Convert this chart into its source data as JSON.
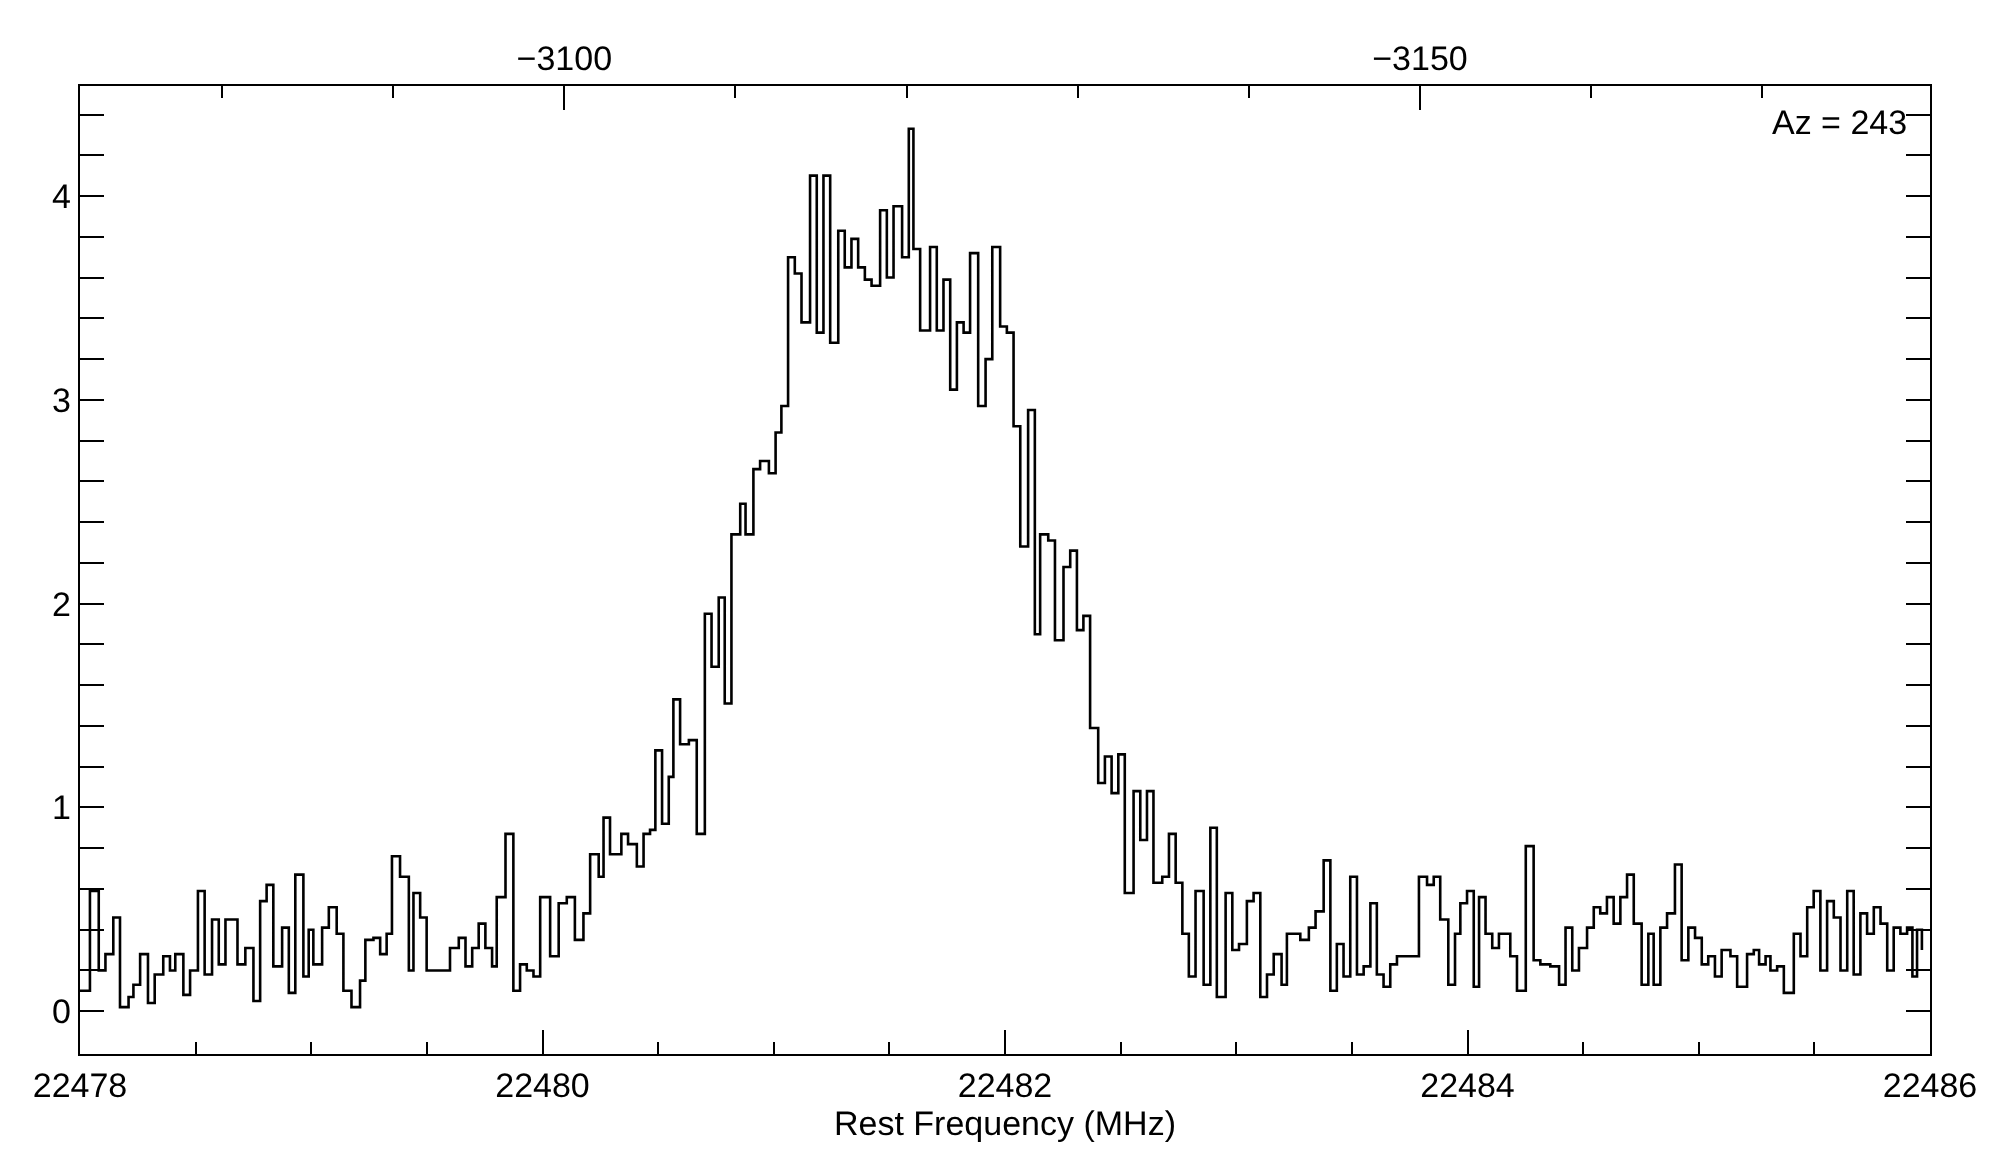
{
  "chart_data": {
    "type": "step",
    "xlabel": "Rest Frequency (MHz)",
    "annotations": [
      "Az = 243"
    ],
    "xlim": [
      22478,
      22486
    ],
    "xticks": [
      22478,
      {
        "value": 22478.5,
        "label": null
      },
      {
        "value": 22479,
        "label": null
      },
      {
        "value": 22479.5,
        "label": null
      },
      22480,
      {
        "value": 22480.5,
        "label": null
      },
      {
        "value": 22481,
        "label": null
      },
      {
        "value": 22481.5,
        "label": null
      },
      22482,
      {
        "value": 22482.5,
        "label": null
      },
      {
        "value": 22483,
        "label": null
      },
      {
        "value": 22483.5,
        "label": null
      },
      22484,
      {
        "value": 22484.5,
        "label": null
      },
      {
        "value": 22485,
        "label": null
      },
      {
        "value": 22485.5,
        "label": null
      },
      22486
    ],
    "x2lim": [
      -3071.7,
      -3179.8
    ],
    "x2ticks": [
      {
        "value": -3080,
        "label": null
      },
      {
        "value": -3090,
        "label": null
      },
      {
        "value": -3100,
        "label": "−3100"
      },
      {
        "value": -3110,
        "label": null
      },
      {
        "value": -3120,
        "label": null
      },
      {
        "value": -3130,
        "label": null
      },
      {
        "value": -3140,
        "label": null
      },
      {
        "value": -3150,
        "label": "−3150"
      },
      {
        "value": -3160,
        "label": null
      },
      {
        "value": -3170,
        "label": null
      }
    ],
    "ylim": [
      -0.21,
      4.54
    ],
    "yticks": [
      0,
      {
        "value": 0.2,
        "label": null
      },
      {
        "value": 0.4,
        "label": null
      },
      {
        "value": 0.6,
        "label": null
      },
      {
        "value": 0.8,
        "label": null
      },
      1,
      {
        "value": 1.2,
        "label": null
      },
      {
        "value": 1.4,
        "label": null
      },
      {
        "value": 1.6,
        "label": null
      },
      {
        "value": 1.8,
        "label": null
      },
      2,
      {
        "value": 2.2,
        "label": null
      },
      {
        "value": 2.4,
        "label": null
      },
      {
        "value": 2.6,
        "label": null
      },
      {
        "value": 2.8,
        "label": null
      },
      3,
      {
        "value": 3.2,
        "label": null
      },
      {
        "value": 3.4,
        "label": null
      },
      {
        "value": 3.6,
        "label": null
      },
      {
        "value": 3.8,
        "label": null
      },
      4,
      {
        "value": 4.2,
        "label": null
      },
      {
        "value": 4.4,
        "label": null
      }
    ],
    "marker": "none",
    "line_style": "solid",
    "series": [
      {
        "color": "#000000",
        "x": [
          22478.0,
          22478.043,
          22478.081,
          22478.11,
          22478.144,
          22478.173,
          22478.21,
          22478.231,
          22478.26,
          22478.294,
          22478.323,
          22478.36,
          22478.389,
          22478.412,
          22478.447,
          22478.476,
          22478.51,
          22478.539,
          22478.571,
          22478.6,
          22478.629,
          22478.681,
          22478.715,
          22478.75,
          22478.779,
          22478.807,
          22478.836,
          22478.874,
          22478.903,
          22478.931,
          22478.966,
          22478.989,
          22479.009,
          22479.047,
          22479.076,
          22479.11,
          22479.139,
          22479.174,
          22479.211,
          22479.234,
          22479.269,
          22479.298,
          22479.326,
          22479.349,
          22479.384,
          22479.422,
          22479.442,
          22479.471,
          22479.499,
          22479.6,
          22479.638,
          22479.667,
          22479.696,
          22479.724,
          22479.753,
          22479.782,
          22479.802,
          22479.84,
          22479.874,
          22479.903,
          22479.932,
          22479.961,
          22479.99,
          22480.033,
          22480.07,
          22480.105,
          22480.14,
          22480.177,
          22480.206,
          22480.243,
          22480.264,
          22480.292,
          22480.341,
          22480.37,
          22480.408,
          22480.437,
          22480.465,
          22480.488,
          22480.517,
          22480.546,
          22480.566,
          22480.595,
          22480.633,
          22480.667,
          22480.702,
          22480.731,
          22480.762,
          22480.788,
          22480.817,
          22480.855,
          22480.878,
          22480.912,
          22480.941,
          22480.979,
          22481.008,
          22481.033,
          22481.062,
          22481.091,
          22481.12,
          22481.157,
          22481.186,
          22481.215,
          22481.244,
          22481.279,
          22481.307,
          22481.336,
          22481.365,
          22481.394,
          22481.423,
          22481.46,
          22481.489,
          22481.518,
          22481.555,
          22481.584,
          22481.604,
          22481.633,
          22481.676,
          22481.705,
          22481.734,
          22481.763,
          22481.792,
          22481.821,
          22481.849,
          22481.884,
          22481.916,
          22481.945,
          22481.979,
          22482.008,
          22482.037,
          22482.066,
          22482.1,
          22482.129,
          22482.152,
          22482.187,
          22482.216,
          22482.253,
          22482.282,
          22482.311,
          22482.339,
          22482.368,
          22482.403,
          22482.432,
          22482.461,
          22482.49,
          22482.518,
          22482.556,
          22482.585,
          22482.614,
          22482.642,
          22482.68,
          22482.709,
          22482.738,
          22482.767,
          22482.795,
          22482.824,
          22482.859,
          22482.888,
          22482.916,
          22482.954,
          22482.983,
          22483.012,
          22483.046,
          22483.075,
          22483.104,
          22483.133,
          22483.162,
          22483.196,
          22483.219,
          22483.277,
          22483.314,
          22483.343,
          22483.378,
          22483.407,
          22483.435,
          22483.464,
          22483.493,
          22483.522,
          22483.551,
          22483.58,
          22483.608,
          22483.637,
          22483.666,
          22483.695,
          22483.79,
          22483.825,
          22483.854,
          22483.882,
          22483.917,
          22483.946,
          22483.969,
          22483.998,
          22484.027,
          22484.05,
          22484.078,
          22484.107,
          22484.136,
          22484.185,
          22484.214,
          22484.252,
          22484.286,
          22484.315,
          22484.358,
          22484.396,
          22484.424,
          22484.453,
          22484.482,
          22484.517,
          22484.546,
          22484.574,
          22484.603,
          22484.632,
          22484.661,
          22484.69,
          22484.719,
          22484.753,
          22484.782,
          22484.805,
          22484.834,
          22484.863,
          22484.897,
          22484.926,
          22484.955,
          22484.984,
          22485.013,
          22485.041,
          22485.07,
          22485.099,
          22485.137,
          22485.166,
          22485.209,
          22485.238,
          22485.261,
          22485.289,
          22485.31,
          22485.339,
          22485.368,
          22485.411,
          22485.44,
          22485.469,
          22485.497,
          22485.526,
          22485.555,
          22485.584,
          22485.613,
          22485.642,
          22485.67,
          22485.699,
          22485.728,
          22485.757,
          22485.786,
          22485.815,
          22485.843,
          22485.872,
          22485.901,
          22485.924,
          22485.944,
          22485.965
        ],
        "values": [
          0.1,
          0.59,
          0.2,
          0.28,
          0.46,
          0.02,
          0.07,
          0.13,
          0.28,
          0.04,
          0.18,
          0.27,
          0.2,
          0.28,
          0.08,
          0.2,
          0.59,
          0.18,
          0.45,
          0.23,
          0.45,
          0.23,
          0.31,
          0.05,
          0.54,
          0.62,
          0.22,
          0.41,
          0.09,
          0.67,
          0.17,
          0.4,
          0.23,
          0.41,
          0.51,
          0.38,
          0.1,
          0.02,
          0.15,
          0.35,
          0.36,
          0.28,
          0.38,
          0.76,
          0.66,
          0.2,
          0.58,
          0.46,
          0.2,
          0.31,
          0.36,
          0.22,
          0.31,
          0.43,
          0.31,
          0.22,
          0.56,
          0.87,
          0.1,
          0.23,
          0.2,
          0.17,
          0.56,
          0.27,
          0.53,
          0.56,
          0.35,
          0.48,
          0.77,
          0.66,
          0.95,
          0.77,
          0.87,
          0.82,
          0.71,
          0.87,
          0.89,
          1.28,
          0.92,
          1.15,
          1.53,
          1.31,
          1.33,
          0.87,
          1.95,
          1.69,
          2.03,
          1.51,
          2.34,
          2.49,
          2.34,
          2.66,
          2.7,
          2.64,
          2.84,
          2.97,
          3.7,
          3.62,
          3.38,
          4.1,
          3.33,
          4.1,
          3.28,
          3.83,
          3.65,
          3.79,
          3.65,
          3.59,
          3.56,
          3.93,
          3.6,
          3.95,
          3.7,
          4.33,
          3.74,
          3.34,
          3.75,
          3.34,
          3.59,
          3.05,
          3.38,
          3.33,
          3.72,
          2.97,
          3.2,
          3.75,
          3.36,
          3.33,
          2.87,
          2.28,
          2.95,
          1.85,
          2.34,
          2.31,
          1.82,
          2.18,
          2.26,
          1.87,
          1.94,
          1.39,
          1.12,
          1.25,
          1.07,
          1.26,
          0.58,
          1.08,
          0.84,
          1.08,
          0.63,
          0.66,
          0.87,
          0.63,
          0.38,
          0.17,
          0.59,
          0.13,
          0.9,
          0.07,
          0.58,
          0.3,
          0.33,
          0.54,
          0.58,
          0.07,
          0.18,
          0.28,
          0.13,
          0.38,
          0.35,
          0.41,
          0.49,
          0.74,
          0.1,
          0.33,
          0.17,
          0.66,
          0.18,
          0.22,
          0.53,
          0.18,
          0.12,
          0.23,
          0.27,
          0.66,
          0.62,
          0.66,
          0.45,
          0.13,
          0.38,
          0.53,
          0.59,
          0.12,
          0.56,
          0.38,
          0.31,
          0.38,
          0.27,
          0.1,
          0.81,
          0.25,
          0.23,
          0.22,
          0.13,
          0.41,
          0.2,
          0.31,
          0.41,
          0.51,
          0.48,
          0.56,
          0.43,
          0.56,
          0.67,
          0.43,
          0.13,
          0.38,
          0.13,
          0.41,
          0.48,
          0.72,
          0.25,
          0.41,
          0.36,
          0.23,
          0.27,
          0.17,
          0.3,
          0.27,
          0.12,
          0.28,
          0.3,
          0.23,
          0.27,
          0.2,
          0.22,
          0.09,
          0.38,
          0.27,
          0.51,
          0.59,
          0.2,
          0.54,
          0.46,
          0.2,
          0.59,
          0.18,
          0.48,
          0.38,
          0.51,
          0.43,
          0.2,
          0.41,
          0.38,
          0.41,
          0.17,
          0.4,
          0.3
        ]
      }
    ]
  }
}
